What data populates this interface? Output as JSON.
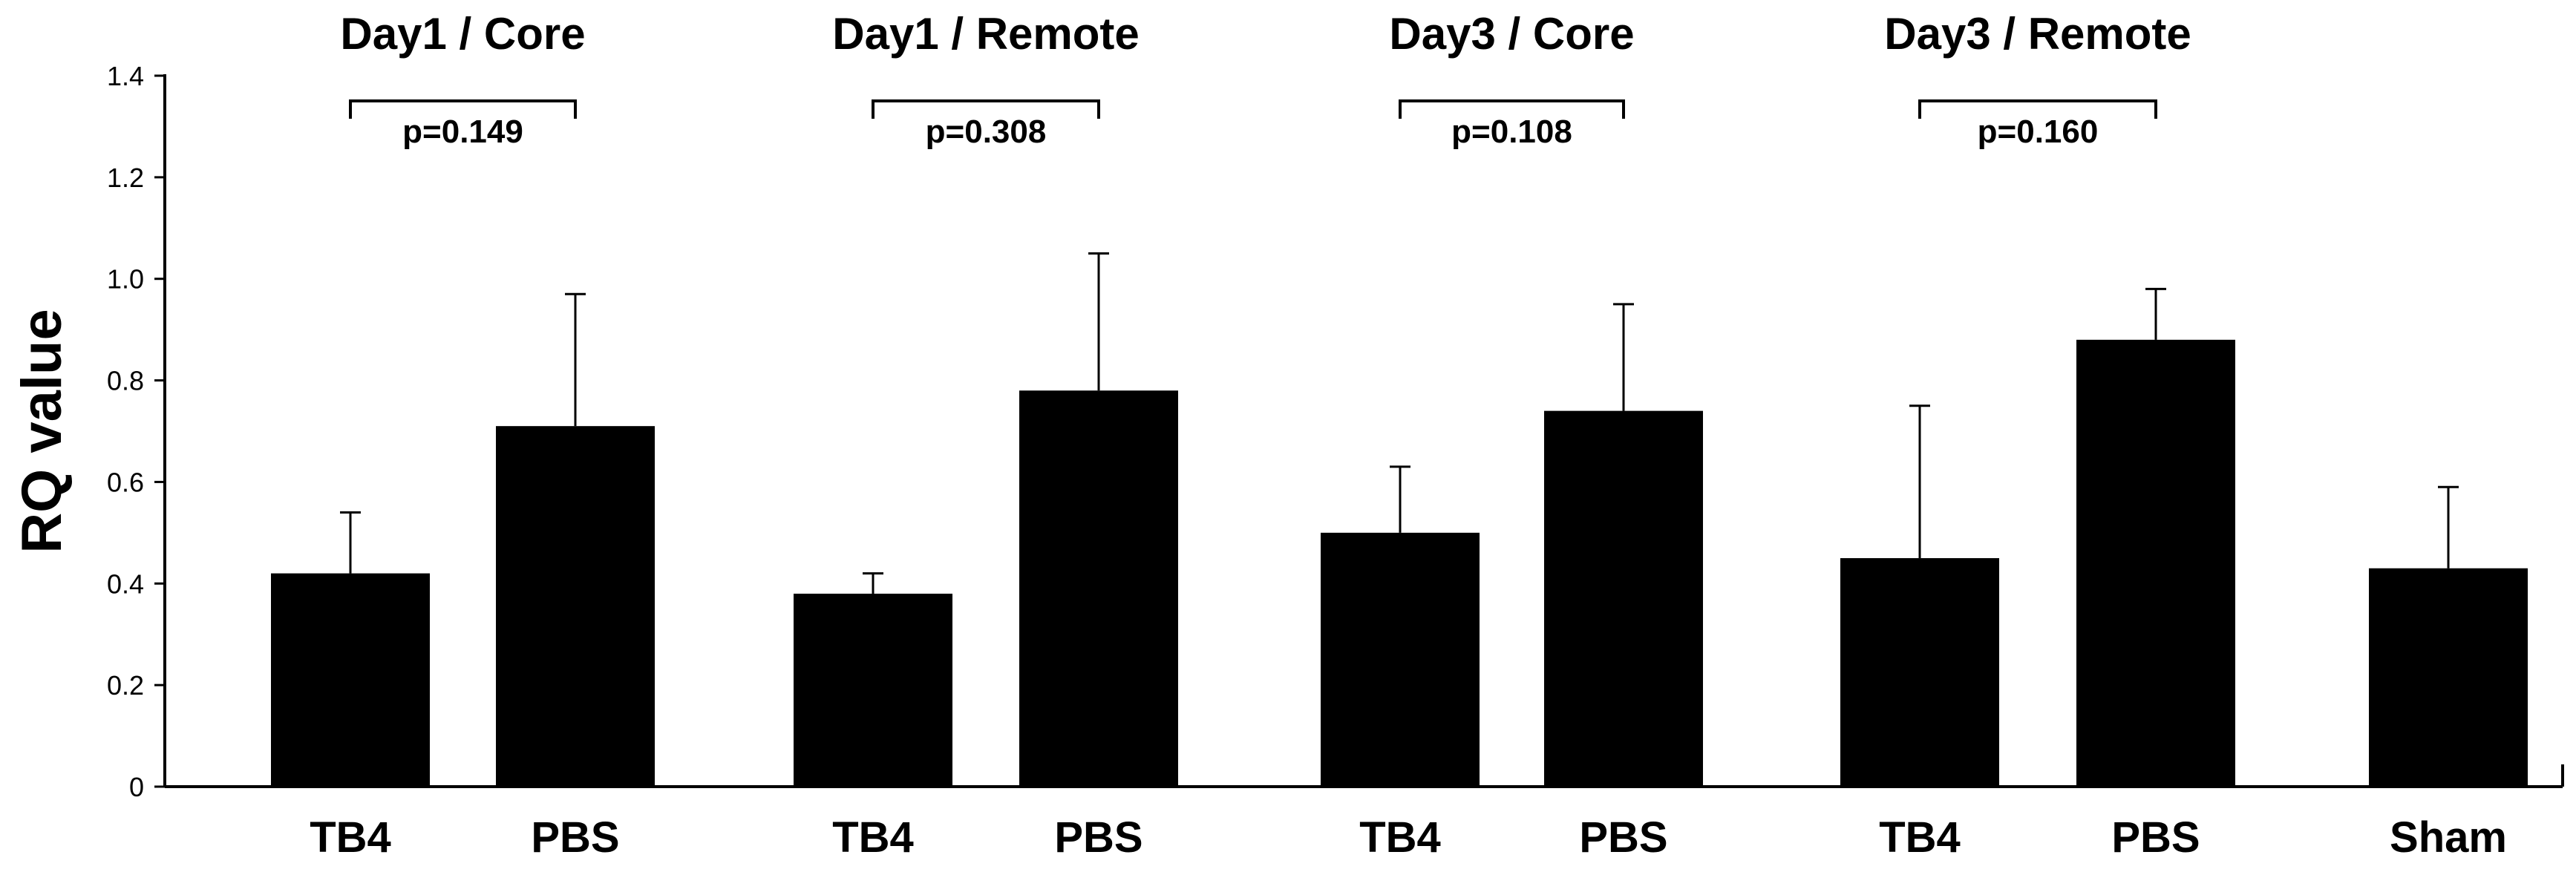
{
  "chart_data": {
    "type": "bar",
    "ylabel": "RQ value",
    "ylim": [
      0,
      1.4
    ],
    "yticks": [
      0,
      0.2,
      0.4,
      0.6,
      0.8,
      1.0,
      1.2,
      1.4
    ],
    "ytick_labels": [
      "0",
      "0.2",
      "0.4",
      "0.6",
      "0.8",
      "1.0",
      "1.2",
      "1.4"
    ],
    "grid": false,
    "bars": [
      {
        "label": "TB4",
        "group": "Day1 / Core",
        "value": 0.42,
        "error": 0.12
      },
      {
        "label": "PBS",
        "group": "Day1 / Core",
        "value": 0.71,
        "error": 0.26
      },
      {
        "label": "TB4",
        "group": "Day1 / Remote",
        "value": 0.38,
        "error": 0.04
      },
      {
        "label": "PBS",
        "group": "Day1 / Remote",
        "value": 0.78,
        "error": 0.27
      },
      {
        "label": "TB4",
        "group": "Day3 / Core",
        "value": 0.5,
        "error": 0.13
      },
      {
        "label": "PBS",
        "group": "Day3 / Core",
        "value": 0.74,
        "error": 0.21
      },
      {
        "label": "TB4",
        "group": "Day3 / Remote",
        "value": 0.45,
        "error": 0.3
      },
      {
        "label": "PBS",
        "group": "Day3 / Remote",
        "value": 0.88,
        "error": 0.1
      },
      {
        "label": "Sham",
        "group": "",
        "value": 0.43,
        "error": 0.16
      }
    ],
    "groups": [
      {
        "title": "Day1 / Core",
        "p_value": "p=0.149"
      },
      {
        "title": "Day1 / Remote",
        "p_value": "p=0.308"
      },
      {
        "title": "Day3 / Core",
        "p_value": "p=0.108"
      },
      {
        "title": "Day3 / Remote",
        "p_value": "p=0.160"
      }
    ]
  }
}
